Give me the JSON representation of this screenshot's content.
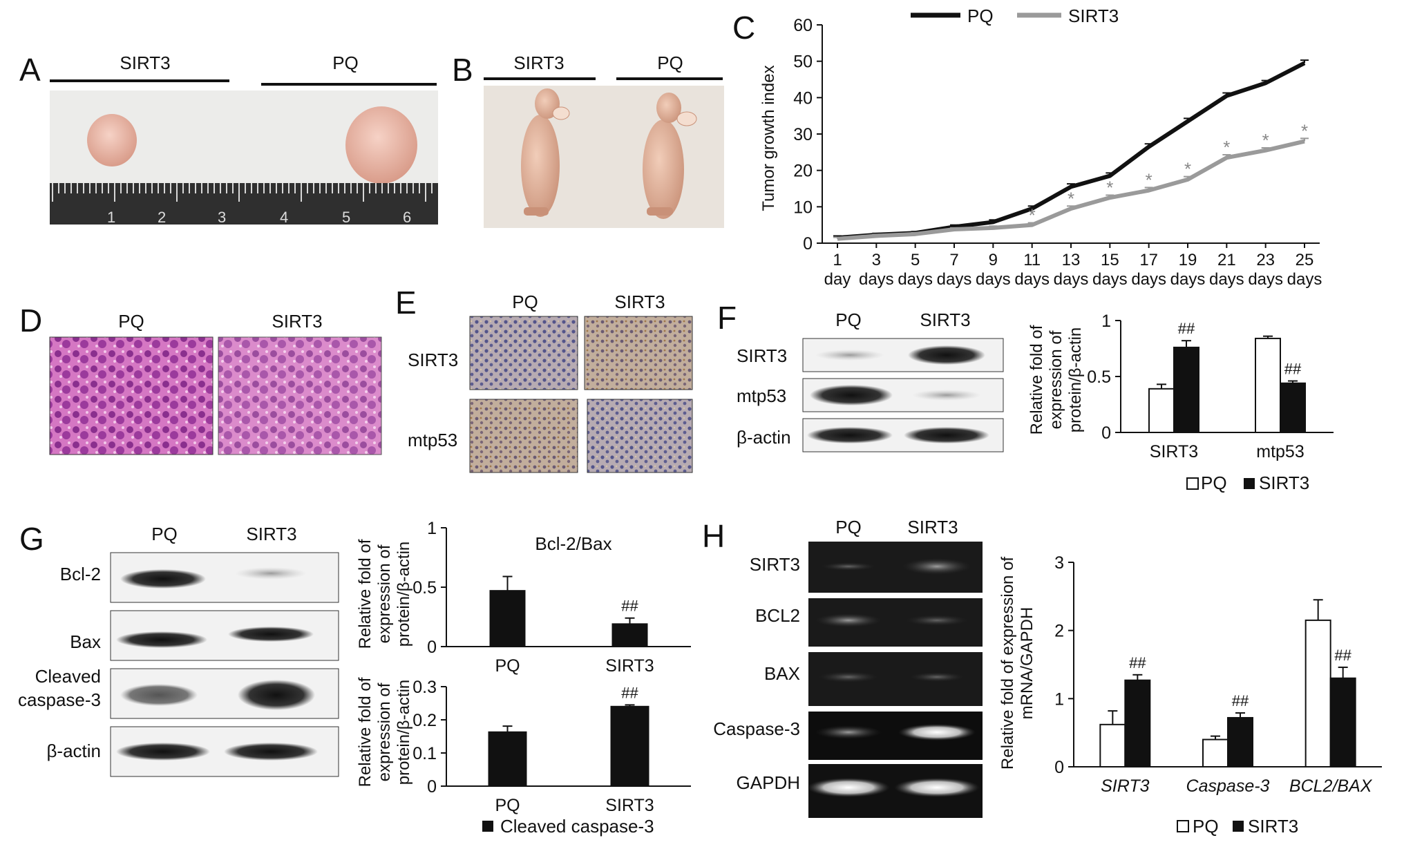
{
  "panel_labels": [
    "A",
    "B",
    "C",
    "D",
    "E",
    "F",
    "G",
    "H"
  ],
  "colors": {
    "pq": "#111111",
    "sirt3_line": "#9a9a9a",
    "bar_pq": "#ffffff",
    "bar_sirt3": "#111111",
    "he_stain": "#c24aa6",
    "ihc_bg": "#b6aab0"
  },
  "panel_a": {
    "labels": [
      "SIRT3",
      "PQ"
    ],
    "ruler_digits": [
      "1",
      "2",
      "3",
      "4",
      "5",
      "6"
    ]
  },
  "panel_b": {
    "labels": [
      "SIRT3",
      "PQ"
    ]
  },
  "panel_d": {
    "labels": [
      "PQ",
      "SIRT3"
    ]
  },
  "panel_e": {
    "cols": [
      "PQ",
      "SIRT3"
    ],
    "rows": [
      "SIRT3",
      "mtp53"
    ]
  },
  "panel_f": {
    "cols": [
      "PQ",
      "SIRT3"
    ],
    "rows": [
      "SIRT3",
      "mtp53",
      "β-actin"
    ]
  },
  "panel_g": {
    "cols": [
      "PQ",
      "SIRT3"
    ],
    "rows": [
      "Bcl-2",
      "Bax",
      "Cleaved",
      "caspase-3",
      "β-actin"
    ]
  },
  "panel_h": {
    "cols": [
      "PQ",
      "SIRT3"
    ],
    "rows": [
      "SIRT3",
      "BCL2",
      "BAX",
      "Caspase-3",
      "GAPDH"
    ]
  },
  "chart_data": [
    {
      "id": "C",
      "type": "line",
      "ylabel": "Tumor growth index",
      "ylim": [
        0,
        60
      ],
      "yticks": [
        0,
        10,
        20,
        30,
        40,
        50,
        60
      ],
      "x_top": [
        "1",
        "3",
        "5",
        "7",
        "9",
        "11",
        "13",
        "15",
        "17",
        "19",
        "21",
        "23",
        "25"
      ],
      "x_bottom": [
        "day",
        "days",
        "days",
        "days",
        "days",
        "days",
        "days",
        "days",
        "days",
        "days",
        "days",
        "days",
        "days"
      ],
      "significance_mark": "*",
      "significant_from_index": 5,
      "series": [
        {
          "name": "PQ",
          "values": [
            1.5,
            2.3,
            2.8,
            4.5,
            5.8,
            9.5,
            15.5,
            18.5,
            26.5,
            33.5,
            40.5,
            44.0,
            49.5
          ],
          "err": [
            0.5,
            0.4,
            0.4,
            0.5,
            0.6,
            0.7,
            0.8,
            0.8,
            0.8,
            0.8,
            0.8,
            0.7,
            0.8
          ]
        },
        {
          "name": "SIRT3",
          "values": [
            1.2,
            2.0,
            2.5,
            3.8,
            4.2,
            5.0,
            9.5,
            12.5,
            14.5,
            17.5,
            23.5,
            25.5,
            28.0
          ],
          "err": [
            0.4,
            0.4,
            0.4,
            0.4,
            0.5,
            0.6,
            0.7,
            0.7,
            0.8,
            0.8,
            0.8,
            0.7,
            0.8
          ]
        }
      ]
    },
    {
      "id": "F",
      "type": "bar",
      "ylabel": [
        "Relative fold of",
        "expression of",
        "protein/β-actin"
      ],
      "ylim": [
        0,
        1
      ],
      "yticks": [
        0,
        0.5,
        1
      ],
      "categories": [
        "SIRT3",
        "mtp53"
      ],
      "series": [
        {
          "name": "PQ",
          "values": [
            0.39,
            0.84
          ],
          "err": [
            0.04,
            0.02
          ]
        },
        {
          "name": "SIRT3",
          "values": [
            0.76,
            0.44
          ],
          "err": [
            0.06,
            0.02
          ]
        }
      ],
      "annotations": [
        "##",
        "##"
      ]
    },
    {
      "id": "G-top",
      "type": "bar",
      "title": "Bcl-2/Bax",
      "ylabel": [
        "Relative fold of",
        "expression of",
        "protein/β-actin"
      ],
      "ylim": [
        0,
        1
      ],
      "yticks": [
        0,
        0.5,
        1
      ],
      "categories": [
        "PQ",
        "SIRT3"
      ],
      "values": [
        0.47,
        0.19
      ],
      "err": [
        0.12,
        0.05
      ],
      "annotations": [
        "",
        "##"
      ]
    },
    {
      "id": "G-bottom",
      "type": "bar",
      "ylabel": [
        "Relative fold of",
        "expression of",
        "protein/β-actin"
      ],
      "ylim": [
        0,
        0.3
      ],
      "yticks": [
        0,
        0.1,
        0.2,
        0.3
      ],
      "categories": [
        "PQ",
        "SIRT3"
      ],
      "values": [
        0.163,
        0.24
      ],
      "err": [
        0.018,
        0.005
      ],
      "annotations": [
        "",
        "##"
      ],
      "legend": "Cleaved caspase-3"
    },
    {
      "id": "H",
      "type": "bar",
      "ylabel": [
        "Relative fold of expression of",
        "mRNA/GAPDH"
      ],
      "ylim": [
        0,
        3
      ],
      "yticks": [
        0,
        1,
        2,
        3
      ],
      "categories": [
        "SIRT3",
        "Caspase-3",
        "BCL2/BAX"
      ],
      "series": [
        {
          "name": "PQ",
          "values": [
            0.62,
            0.4,
            2.15
          ],
          "err": [
            0.2,
            0.05,
            0.3
          ]
        },
        {
          "name": "SIRT3",
          "values": [
            1.27,
            0.72,
            1.3
          ],
          "err": [
            0.08,
            0.07,
            0.16
          ]
        }
      ],
      "annotations": [
        "##",
        "##",
        "##"
      ]
    }
  ]
}
